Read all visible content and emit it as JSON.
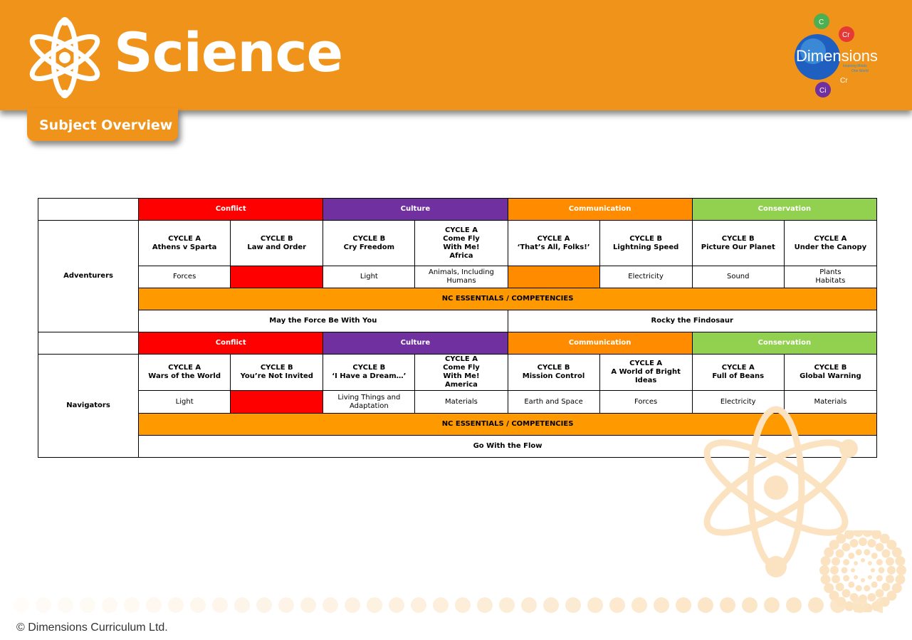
{
  "header": {
    "title": "Science",
    "subtitle": "Subject Overview",
    "colors": {
      "brand_orange": "#f0931a",
      "white": "#ffffff"
    }
  },
  "logo": {
    "name": "Dimensions",
    "tagline_1": "Inspiring Minds",
    "tagline_2": "One World",
    "badges": [
      "C",
      "Cr",
      "Ci",
      "Cr"
    ]
  },
  "themes": [
    {
      "label": "Conflict",
      "color": "#ff0000"
    },
    {
      "label": "Culture",
      "color": "#7030a0"
    },
    {
      "label": "Communication",
      "color": "#ff8c00"
    },
    {
      "label": "Conservation",
      "color": "#92d050"
    }
  ],
  "adventurers": {
    "label": "Adventurers",
    "cycles": [
      "CYCLE A\nAthens v Sparta",
      "CYCLE B\nLaw and Order",
      "CYCLE B\nCry Freedom",
      "CYCLE A\nCome Fly\nWith Me!\nAfrica",
      "CYCLE A\n‘That’s All, Folks!’",
      "CYCLE B\nLightning Speed",
      "CYCLE B\nPicture Our Planet",
      "CYCLE A\nUnder the Canopy"
    ],
    "topics": [
      "Forces",
      "",
      "Light",
      "Animals, Including\nHumans",
      "",
      "Electricity",
      "Sound",
      "Plants\nHabitats"
    ],
    "essentials": "NC ESSENTIALS / COMPETENCIES",
    "projects": [
      "May the Force Be With You",
      "Rocky the Findosaur"
    ]
  },
  "navigators": {
    "label": "Navigators",
    "cycles": [
      "CYCLE A\nWars of the World",
      "CYCLE B\nYou’re Not Invited",
      "CYCLE B\n‘I Have a Dream…’",
      "CYCLE A\nCome Fly\nWith Me!\nAmerica",
      "CYCLE B\nMission Control",
      "CYCLE A\nA World of Bright Ideas",
      "CYCLE A\nFull of Beans",
      "CYCLE B\nGlobal Warning"
    ],
    "topics": [
      "Light",
      "",
      "Living Things and\nAdaptation",
      "Materials",
      "Earth and Space",
      "Forces",
      "Electricity",
      "Materials"
    ],
    "essentials": "NC ESSENTIALS / COMPETENCIES",
    "projects": [
      "Go With the Flow"
    ]
  },
  "footer": {
    "copyright": "© Dimensions Curriculum Ltd."
  }
}
